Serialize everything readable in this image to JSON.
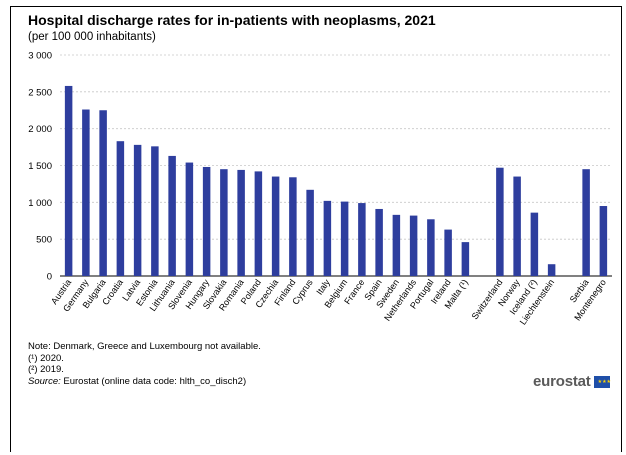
{
  "chart_data": {
    "type": "bar",
    "title": "Hospital discharge rates for in-patients with neoplasms, 2021",
    "subtitle": "(per 100 000 inhabitants)",
    "xlabel": "",
    "ylabel": "",
    "ylim": [
      0,
      3000
    ],
    "yticks": [
      0,
      500,
      1000,
      1500,
      2000,
      2500,
      3000
    ],
    "ytick_labels": [
      "0",
      "500",
      "1 000",
      "1 500",
      "2 000",
      "2 500",
      "3 000"
    ],
    "grid": true,
    "bar_color": "#2e3e9e",
    "categories": [
      "Austria",
      "Germany",
      "Bulgaria",
      "Croatia",
      "Latvia",
      "Estonia",
      "Lithuania",
      "Slovenia",
      "Hungary",
      "Slovakia",
      "Romania",
      "Poland",
      "Czechia",
      "Finland",
      "Cyprus",
      "Italy",
      "Belgium",
      "France",
      "Spain",
      "Sweden",
      "Netherlands",
      "Portugal",
      "Ireland",
      "Malta (¹)",
      "",
      "Switzerland",
      "Norway",
      "Iceland (²)",
      "Liechtenstein",
      "",
      "Serbia",
      "Montenegro"
    ],
    "values": [
      2580,
      2260,
      2250,
      1830,
      1780,
      1760,
      1630,
      1540,
      1480,
      1450,
      1440,
      1420,
      1350,
      1340,
      1170,
      1020,
      1010,
      990,
      910,
      830,
      820,
      770,
      630,
      460,
      null,
      1470,
      1350,
      860,
      160,
      null,
      1450,
      950
    ]
  },
  "notes": {
    "note": "Note: Denmark, Greece and Luxembourg not available.",
    "fn1": "(¹) 2020.",
    "fn2": "(²) 2019.",
    "source_label": "Source:",
    "source_text": " Eurostat (online data code: hlth_co_disch2)"
  },
  "logo": {
    "text": "eurostat",
    "flag_icon": "eu-flag-icon"
  }
}
